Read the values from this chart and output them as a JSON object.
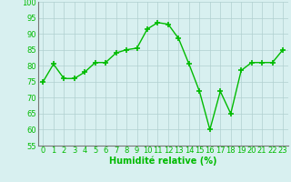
{
  "x": [
    0,
    1,
    2,
    3,
    4,
    5,
    6,
    7,
    8,
    9,
    10,
    11,
    12,
    13,
    14,
    15,
    16,
    17,
    18,
    19,
    20,
    21,
    22,
    23
  ],
  "y": [
    75,
    80.5,
    76,
    76,
    78,
    81,
    81,
    84,
    85,
    85.5,
    91.5,
    93.5,
    93,
    88.5,
    80.5,
    72,
    60,
    72,
    65,
    78.5,
    81,
    81,
    81,
    85
  ],
  "line_color": "#00bb00",
  "marker_color": "#00bb00",
  "bg_color": "#d8f0f0",
  "grid_color": "#b0d0d0",
  "xlabel": "Humidité relative (%)",
  "xlabel_color": "#00bb00",
  "xlabel_fontsize": 7,
  "tick_color": "#00bb00",
  "tick_fontsize": 6,
  "ylim": [
    55,
    100
  ],
  "yticks": [
    55,
    60,
    65,
    70,
    75,
    80,
    85,
    90,
    95,
    100
  ],
  "xlim": [
    -0.5,
    23.5
  ],
  "xticks": [
    0,
    1,
    2,
    3,
    4,
    5,
    6,
    7,
    8,
    9,
    10,
    11,
    12,
    13,
    14,
    15,
    16,
    17,
    18,
    19,
    20,
    21,
    22,
    23
  ]
}
